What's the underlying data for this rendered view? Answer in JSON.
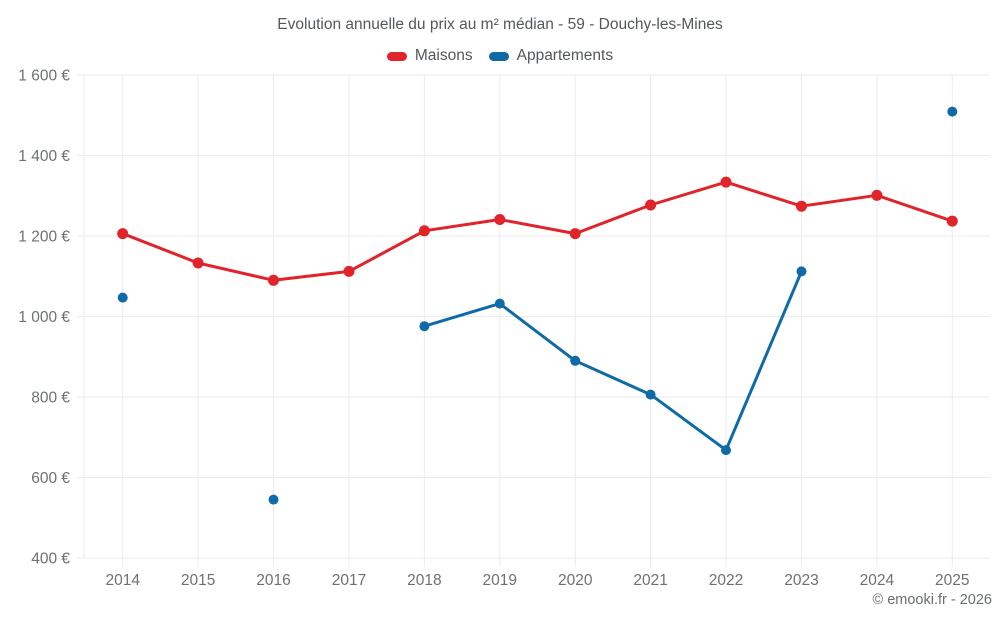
{
  "title": "Evolution annuelle du prix au m² médian - 59 - Douchy-les-Mines",
  "copyright": "© emooki.fr - 2026",
  "colors": {
    "maisons": "#e1232a",
    "appartements": "#0e6ba8",
    "grid": "#ebebeb",
    "axis_text": "#6d7173",
    "title_text": "#54585b"
  },
  "chart_data": {
    "type": "line",
    "title": "Evolution annuelle du prix au m² médian - 59 - Douchy-les-Mines",
    "xlabel": "",
    "ylabel": "",
    "categories": [
      "2014",
      "2015",
      "2016",
      "2017",
      "2018",
      "2019",
      "2020",
      "2021",
      "2022",
      "2023",
      "2024",
      "2025"
    ],
    "series": [
      {
        "name": "Maisons",
        "color": "#e1232a",
        "values": [
          1206,
          1133,
          1090,
          1112,
          1213,
          1241,
          1206,
          1277,
          1334,
          1274,
          1301,
          1237
        ]
      },
      {
        "name": "Appartements",
        "color": "#0e6ba8",
        "values": [
          1047,
          null,
          545,
          null,
          976,
          1032,
          890,
          806,
          668,
          1112,
          null,
          1509
        ]
      }
    ],
    "ylim": [
      400,
      1600
    ],
    "ytick_step": 200,
    "ytick_labels": [
      "400 €",
      "600 €",
      "800 €",
      "1 000 €",
      "1 200 €",
      "1 400 €",
      "1 600 €"
    ],
    "grid": true,
    "legend_position": "top"
  }
}
